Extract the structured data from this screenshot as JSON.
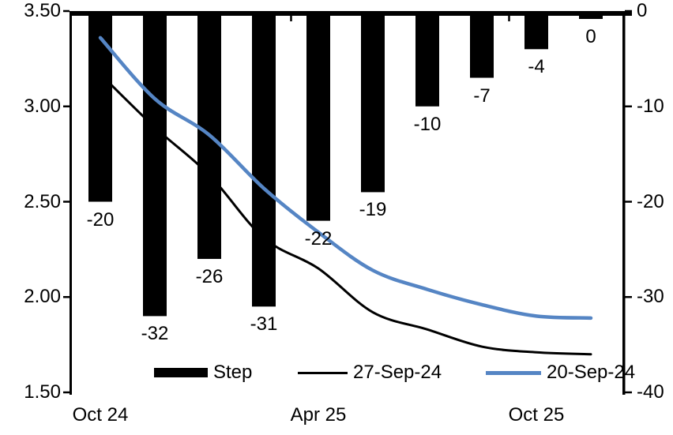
{
  "chart_data": {
    "type": "combo-bar-line",
    "n_categories": 10,
    "bar_series": {
      "name": "Step",
      "axis": "right",
      "color": "#000000",
      "values": [
        -20,
        -32,
        -26,
        -31,
        -22,
        -19,
        -10,
        -7,
        -4,
        0
      ],
      "data_labels": [
        "-20",
        "-32",
        "-26",
        "-31",
        "-22",
        "-19",
        "-10",
        "-7",
        "-4",
        "0"
      ]
    },
    "line_series": [
      {
        "name": "27-Sep-24",
        "axis": "left",
        "color": "#000000",
        "stroke_width": 3,
        "values": [
          3.17,
          2.89,
          2.64,
          2.31,
          2.15,
          1.92,
          1.83,
          1.74,
          1.71,
          1.7
        ]
      },
      {
        "name": "20-Sep-24",
        "axis": "left",
        "color": "#5585c4",
        "stroke_width": 4.5,
        "values": [
          3.36,
          3.04,
          2.85,
          2.57,
          2.34,
          2.14,
          2.04,
          1.96,
          1.9,
          1.89
        ]
      }
    ],
    "left_axis": {
      "min": 1.5,
      "max": 3.5,
      "tick_labels": [
        "3.50",
        "3.00",
        "2.50",
        "2.00",
        "1.50"
      ]
    },
    "right_axis": {
      "min": -40,
      "max": 0,
      "tick_labels": [
        "0",
        "-10",
        "-20",
        "-30",
        "-40"
      ]
    },
    "x_axis": {
      "labels": [
        {
          "text": "Oct 24",
          "category": 0
        },
        {
          "text": "Apr 25",
          "category": 4
        },
        {
          "text": "Oct 25",
          "category": 8
        }
      ]
    },
    "legend": {
      "position": "bottom-inside",
      "items": [
        {
          "label": "Step",
          "swatch": "bar",
          "color": "#000000"
        },
        {
          "label": "27-Sep-24",
          "swatch": "line",
          "color": "#000000"
        },
        {
          "label": "20-Sep-24",
          "swatch": "line-thick",
          "color": "#5585c4"
        }
      ]
    },
    "grid": "off"
  }
}
